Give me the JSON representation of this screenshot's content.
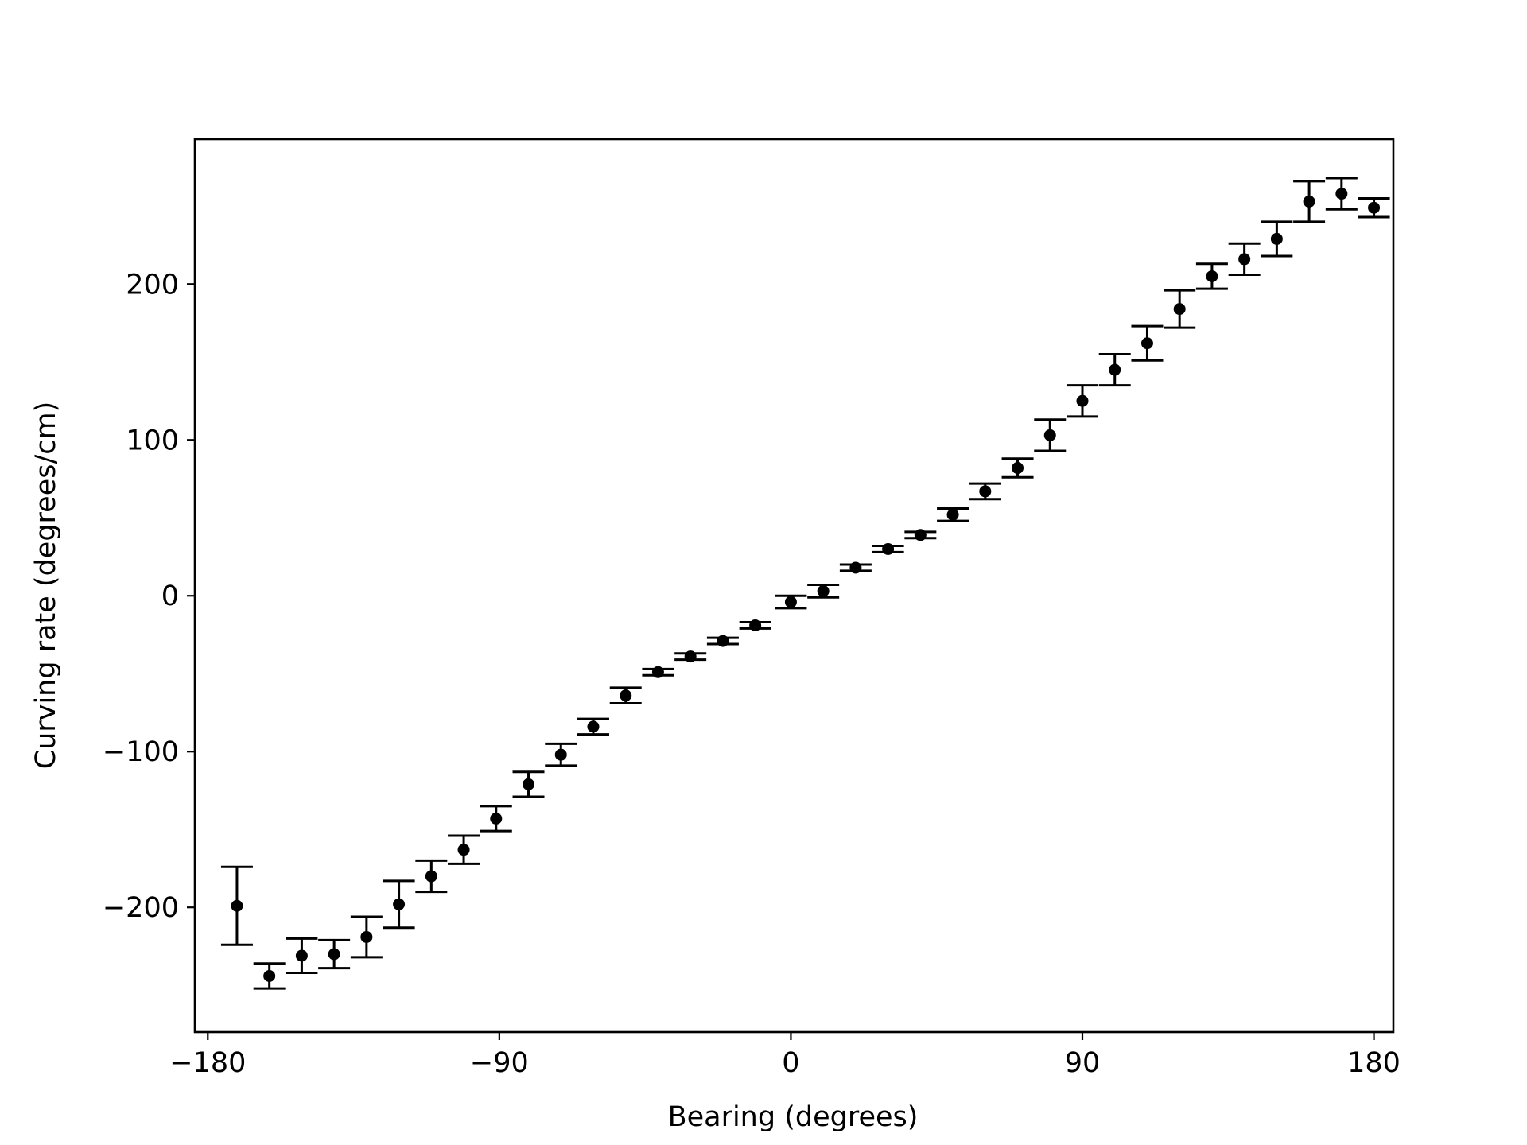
{
  "chart_data": {
    "type": "scatter",
    "title": "",
    "xlabel": "Bearing (degrees)",
    "ylabel": "Curving rate (degrees/cm)",
    "xlim": [
      -184,
      186
    ],
    "ylim": [
      -280,
      293
    ],
    "xticks": [
      -180,
      -90,
      0,
      90,
      180
    ],
    "yticks": [
      -200,
      -100,
      0,
      100,
      200
    ],
    "xtick_labels": [
      "−180",
      "−90",
      "0",
      "90",
      "180"
    ],
    "ytick_labels": [
      "−200",
      "−100",
      "0",
      "100",
      "200"
    ],
    "grid": false,
    "legend": "none",
    "marker_color": "#000000",
    "series": [
      {
        "points": [
          {
            "x": -171,
            "y": -199,
            "err": 25
          },
          {
            "x": -161,
            "y": -244,
            "err": 8
          },
          {
            "x": -151,
            "y": -231,
            "err": 11
          },
          {
            "x": -141,
            "y": -230,
            "err": 9
          },
          {
            "x": -131,
            "y": -219,
            "err": 13
          },
          {
            "x": -121,
            "y": -198,
            "err": 15
          },
          {
            "x": -111,
            "y": -180,
            "err": 10
          },
          {
            "x": -101,
            "y": -163,
            "err": 9
          },
          {
            "x": -91,
            "y": -143,
            "err": 8
          },
          {
            "x": -81,
            "y": -121,
            "err": 8
          },
          {
            "x": -71,
            "y": -102,
            "err": 7
          },
          {
            "x": -61,
            "y": -84,
            "err": 5
          },
          {
            "x": -51,
            "y": -64,
            "err": 5
          },
          {
            "x": -41,
            "y": -49,
            "err": 2
          },
          {
            "x": -31,
            "y": -39,
            "err": 2
          },
          {
            "x": -21,
            "y": -29,
            "err": 2
          },
          {
            "x": -11,
            "y": -19,
            "err": 2
          },
          {
            "x": 0,
            "y": -4,
            "err": 4
          },
          {
            "x": 10,
            "y": 3,
            "err": 4
          },
          {
            "x": 20,
            "y": 18,
            "err": 2
          },
          {
            "x": 30,
            "y": 30,
            "err": 2
          },
          {
            "x": 40,
            "y": 39,
            "err": 2
          },
          {
            "x": 50,
            "y": 52,
            "err": 4
          },
          {
            "x": 60,
            "y": 67,
            "err": 5
          },
          {
            "x": 70,
            "y": 82,
            "err": 6
          },
          {
            "x": 80,
            "y": 103,
            "err": 10
          },
          {
            "x": 90,
            "y": 125,
            "err": 10
          },
          {
            "x": 100,
            "y": 145,
            "err": 10
          },
          {
            "x": 110,
            "y": 162,
            "err": 11
          },
          {
            "x": 120,
            "y": 184,
            "err": 12
          },
          {
            "x": 130,
            "y": 205,
            "err": 8
          },
          {
            "x": 140,
            "y": 216,
            "err": 10
          },
          {
            "x": 150,
            "y": 229,
            "err": 11
          },
          {
            "x": 160,
            "y": 253,
            "err": 13
          },
          {
            "x": 170,
            "y": 258,
            "err": 10
          },
          {
            "x": 180,
            "y": 249,
            "err": 6
          }
        ]
      }
    ]
  }
}
